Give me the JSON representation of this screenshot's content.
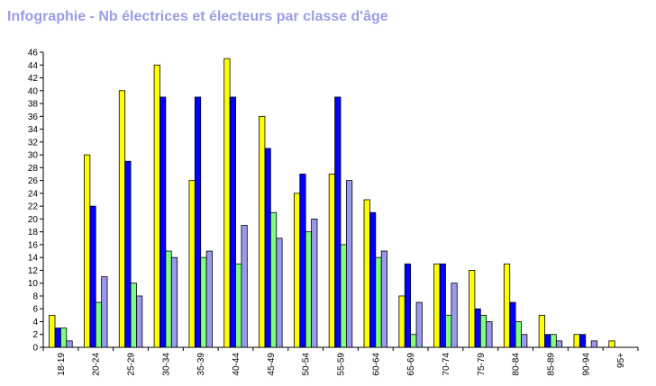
{
  "title": "Infographie - Nb électrices et électeurs par classe d'âge",
  "chart_data": {
    "type": "bar",
    "title": "Infographie - Nb électrices et électeurs par classe d'âge",
    "xlabel": "",
    "ylabel": "",
    "ylim": [
      0,
      46
    ],
    "yticks": [
      0,
      2,
      4,
      6,
      8,
      10,
      12,
      14,
      16,
      18,
      20,
      22,
      24,
      26,
      28,
      30,
      32,
      34,
      36,
      38,
      40,
      42,
      44,
      46
    ],
    "categories": [
      "18-19",
      "20-24",
      "25-29",
      "30-34",
      "35-39",
      "40-44",
      "45-49",
      "50-54",
      "55-59",
      "60-64",
      "65-69",
      "70-74",
      "75-79",
      "80-84",
      "85-89",
      "90-94",
      "95+"
    ],
    "grid": false,
    "legend": "none",
    "series": [
      {
        "color": "#ffff00",
        "values": [
          5,
          30,
          40,
          44,
          26,
          45,
          36,
          24,
          27,
          23,
          8,
          13,
          12,
          13,
          5,
          2,
          1
        ]
      },
      {
        "color": "#0000ff",
        "values": [
          3,
          22,
          29,
          39,
          39,
          39,
          31,
          27,
          39,
          21,
          13,
          13,
          6,
          7,
          2,
          2,
          0
        ]
      },
      {
        "color": "#80ff80",
        "values": [
          3,
          7,
          10,
          15,
          14,
          13,
          21,
          18,
          16,
          14,
          2,
          5,
          5,
          4,
          2,
          0,
          0
        ]
      },
      {
        "color": "#9999ee",
        "values": [
          1,
          11,
          8,
          14,
          15,
          19,
          17,
          20,
          26,
          15,
          7,
          10,
          4,
          2,
          1,
          1,
          0
        ]
      }
    ]
  }
}
